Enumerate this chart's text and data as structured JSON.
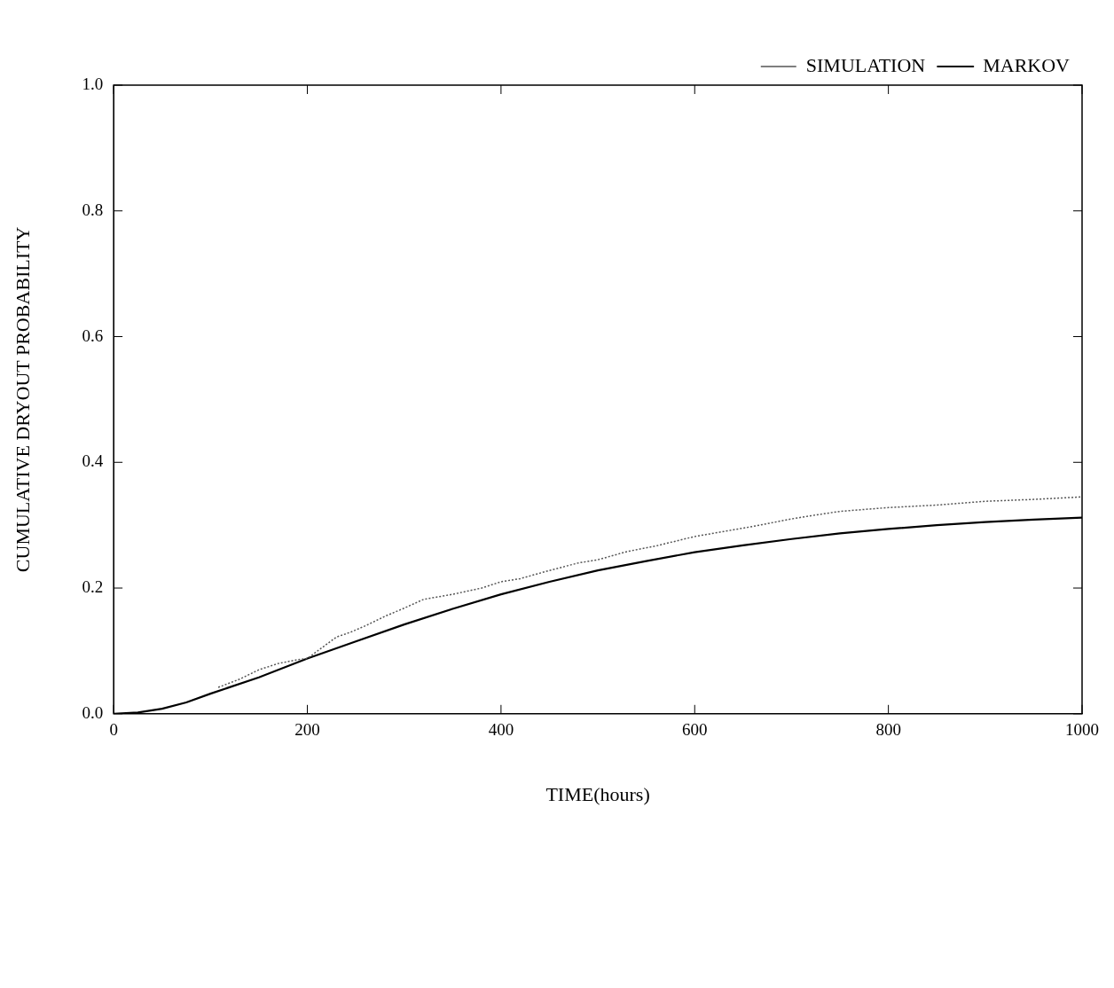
{
  "chart_data": {
    "type": "line",
    "xlabel": "TIME(hours)",
    "ylabel": "CUMULATIVE DRYOUT PROBABILITY",
    "xlim": [
      0,
      1000
    ],
    "xticks": [
      0,
      200,
      400,
      600,
      800,
      1000
    ],
    "ylim": [
      0,
      1
    ],
    "yticks": [
      {
        "value": 0,
        "label": "0.0"
      },
      {
        "value": 0.2,
        "label": "0.2"
      },
      {
        "value": 0.4,
        "label": "0.4"
      },
      {
        "value": 0.6,
        "label": "0.6"
      },
      {
        "value": 0.8,
        "label": "0.8"
      },
      {
        "value": 1,
        "label": "1.0"
      }
    ],
    "grid": false,
    "legend": "top right",
    "marker": "none",
    "series": [
      {
        "name": "SIMULATION",
        "color": "#555555",
        "line_style": "dotted",
        "x": [
          108,
          130,
          150,
          170,
          190,
          200,
          215,
          230,
          245,
          260,
          280,
          300,
          320,
          350,
          380,
          400,
          420,
          450,
          480,
          500,
          530,
          560,
          600,
          630,
          660,
          700,
          720,
          750,
          800,
          850,
          900,
          950,
          1000
        ],
        "values": [
          0.042,
          0.055,
          0.07,
          0.08,
          0.086,
          0.088,
          0.105,
          0.122,
          0.13,
          0.14,
          0.155,
          0.168,
          0.182,
          0.19,
          0.2,
          0.21,
          0.215,
          0.228,
          0.24,
          0.245,
          0.258,
          0.267,
          0.282,
          0.29,
          0.298,
          0.31,
          0.315,
          0.322,
          0.328,
          0.332,
          0.338,
          0.341,
          0.345
        ]
      },
      {
        "name": "MARKOV",
        "color": "#000000",
        "line_style": "solid",
        "x": [
          0,
          25,
          50,
          75,
          100,
          150,
          200,
          250,
          300,
          350,
          400,
          450,
          500,
          550,
          600,
          650,
          700,
          750,
          800,
          850,
          900,
          950,
          1000
        ],
        "values": [
          0,
          0.002,
          0.008,
          0.018,
          0.032,
          0.058,
          0.088,
          0.115,
          0.142,
          0.167,
          0.19,
          0.21,
          0.228,
          0.243,
          0.257,
          0.268,
          0.278,
          0.287,
          0.294,
          0.3,
          0.305,
          0.309,
          0.312
        ]
      }
    ]
  }
}
